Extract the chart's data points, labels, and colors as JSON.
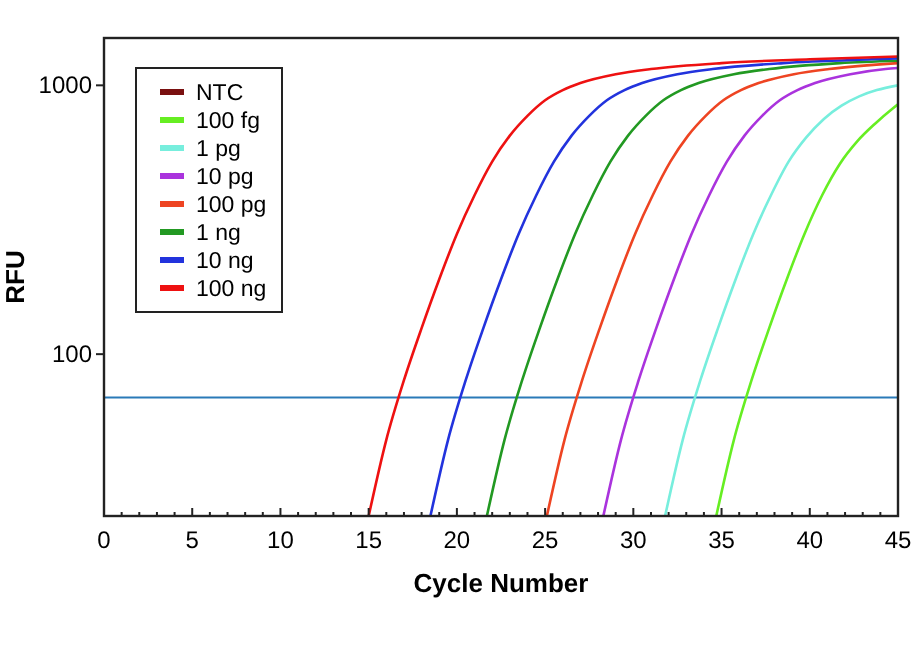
{
  "chart_data": {
    "type": "line",
    "xlabel": "Cycle Number",
    "ylabel": "RFU",
    "log": "y",
    "xlim": [
      0,
      45
    ],
    "ylim": [
      25,
      1500
    ],
    "xticks": [
      0,
      {
        "value": 1,
        "label": null
      },
      {
        "value": 2,
        "label": null
      },
      {
        "value": 3,
        "label": null
      },
      {
        "value": 4,
        "label": null
      },
      5,
      {
        "value": 6,
        "label": null
      },
      {
        "value": 7,
        "label": null
      },
      {
        "value": 8,
        "label": null
      },
      {
        "value": 9,
        "label": null
      },
      10,
      {
        "value": 11,
        "label": null
      },
      {
        "value": 12,
        "label": null
      },
      {
        "value": 13,
        "label": null
      },
      {
        "value": 14,
        "label": null
      },
      15,
      {
        "value": 16,
        "label": null
      },
      {
        "value": 17,
        "label": null
      },
      {
        "value": 18,
        "label": null
      },
      {
        "value": 19,
        "label": null
      },
      20,
      {
        "value": 21,
        "label": null
      },
      {
        "value": 22,
        "label": null
      },
      {
        "value": 23,
        "label": null
      },
      {
        "value": 24,
        "label": null
      },
      25,
      {
        "value": 26,
        "label": null
      },
      {
        "value": 27,
        "label": null
      },
      {
        "value": 28,
        "label": null
      },
      {
        "value": 29,
        "label": null
      },
      30,
      {
        "value": 31,
        "label": null
      },
      {
        "value": 32,
        "label": null
      },
      {
        "value": 33,
        "label": null
      },
      {
        "value": 34,
        "label": null
      },
      35,
      {
        "value": 36,
        "label": null
      },
      {
        "value": 37,
        "label": null
      },
      {
        "value": 38,
        "label": null
      },
      {
        "value": 39,
        "label": null
      },
      40,
      {
        "value": 41,
        "label": null
      },
      {
        "value": 42,
        "label": null
      },
      {
        "value": 43,
        "label": null
      },
      {
        "value": 44,
        "label": null
      },
      45
    ],
    "yticks": [
      100,
      1000
    ],
    "grid": false,
    "legend": "top left",
    "marker": "none",
    "line_style": "solid",
    "ref_lines": [
      {
        "axis": "y",
        "value": 69,
        "color": "#2a7ab8"
      }
    ],
    "series": [
      {
        "name": "NTC",
        "color": "#7a1010"
      },
      {
        "name": "100 fg",
        "color": "#66ee22",
        "x": [
          34.7,
          35.7,
          36.7,
          37.7,
          38.7,
          39.7,
          40.7,
          41.7,
          42.7,
          43.7,
          44.7,
          45
        ],
        "values": [
          25,
          48,
          80,
          125,
          190,
          280,
          390,
          510,
          620,
          720,
          820,
          850
        ]
      },
      {
        "name": "1 pg",
        "color": "#77eedd",
        "x": [
          31.8,
          32.8,
          33.8,
          34.8,
          35.8,
          36.8,
          37.8,
          38.8,
          39.8,
          40.8,
          41.8,
          42.8,
          43.8,
          45
        ],
        "values": [
          25,
          48,
          80,
          125,
          190,
          280,
          390,
          520,
          640,
          750,
          840,
          910,
          960,
          1000
        ]
      },
      {
        "name": "10 pg",
        "color": "#aa33dd",
        "x": [
          28.3,
          29.3,
          30.3,
          31.3,
          32.3,
          33.3,
          34.3,
          35.3,
          36.3,
          37.3,
          38.3,
          39.3,
          40.3,
          42.3,
          44.3,
          45
        ],
        "values": [
          25,
          48,
          80,
          125,
          190,
          280,
          390,
          520,
          650,
          770,
          880,
          960,
          1020,
          1100,
          1150,
          1160
        ]
      },
      {
        "name": "100 pg",
        "color": "#ee4422",
        "x": [
          25.1,
          26.1,
          27.1,
          28.1,
          29.1,
          30.1,
          31.1,
          32.1,
          33.1,
          34.1,
          35.1,
          36.1,
          37.1,
          39.1,
          41.1,
          45
        ],
        "values": [
          25,
          48,
          80,
          125,
          190,
          280,
          390,
          520,
          650,
          770,
          880,
          960,
          1020,
          1100,
          1150,
          1210
        ]
      },
      {
        "name": "1 ng",
        "color": "#229922",
        "x": [
          21.7,
          22.7,
          23.7,
          24.7,
          25.7,
          26.7,
          27.7,
          28.7,
          29.7,
          30.7,
          31.7,
          32.7,
          33.7,
          35.7,
          37.7,
          41.7,
          45
        ],
        "values": [
          25,
          48,
          80,
          125,
          190,
          280,
          390,
          520,
          650,
          770,
          880,
          960,
          1020,
          1100,
          1150,
          1210,
          1235
        ]
      },
      {
        "name": "10 ng",
        "color": "#2233dd",
        "x": [
          18.5,
          19.5,
          20.5,
          21.5,
          22.5,
          23.5,
          24.5,
          25.5,
          26.5,
          27.5,
          28.5,
          29.5,
          30.5,
          32.5,
          34.5,
          38.5,
          43.5,
          45
        ],
        "values": [
          25,
          48,
          80,
          125,
          190,
          280,
          390,
          520,
          650,
          770,
          880,
          960,
          1020,
          1100,
          1150,
          1210,
          1250,
          1260
        ]
      },
      {
        "name": "100 ng",
        "color": "#ee1111",
        "x": [
          15,
          16,
          17,
          18,
          19,
          20,
          21,
          22,
          23,
          24,
          25,
          26,
          27,
          29,
          31,
          35,
          40,
          45
        ],
        "values": [
          25,
          48,
          80,
          125,
          190,
          280,
          390,
          520,
          650,
          770,
          880,
          960,
          1020,
          1100,
          1150,
          1210,
          1250,
          1280
        ]
      }
    ]
  }
}
